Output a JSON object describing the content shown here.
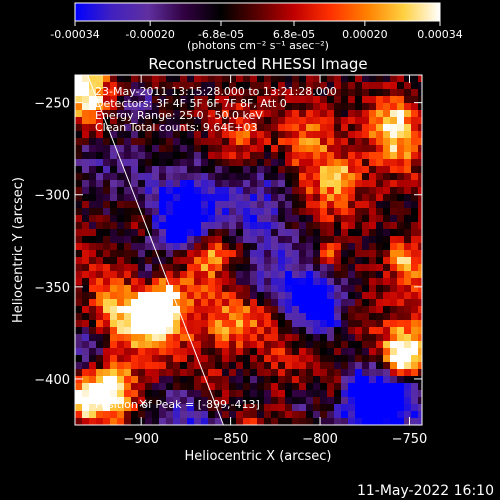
{
  "colorbar": {
    "tick_labels": [
      "-0.00034",
      "-0.00020",
      "-6.8e-05",
      "6.8e-05",
      "0.00020",
      "0.00034"
    ],
    "tick_values": [
      -0.00034,
      -0.0002,
      -6.8e-05,
      6.8e-05,
      0.0002,
      0.00034
    ],
    "range": [
      -0.00034,
      0.00034
    ],
    "units_label": "(photons cm⁻² s⁻¹ asec⁻²)",
    "colors": [
      "#0000ff",
      "#4020c0",
      "#6030a0",
      "#300040",
      "#000000",
      "#5a0000",
      "#c00000",
      "#ff3000",
      "#ff8000",
      "#ffd040",
      "#ffffff"
    ]
  },
  "chart_data": {
    "type": "heatmap",
    "title": "Reconstructed RHESSI Image",
    "xlabel": "Heliocentric X (arcsec)",
    "ylabel": "Heliocentric Y (arcsec)",
    "xlim": [
      -937,
      -743
    ],
    "ylim": [
      -425,
      -235
    ],
    "x_ticks": [
      -900,
      -850,
      -800,
      -750
    ],
    "y_ticks": [
      -250,
      -300,
      -350,
      -400
    ],
    "x_tick_labels": [
      "−900",
      "−850",
      "−800",
      "−750"
    ],
    "y_tick_labels": [
      "−250",
      "−300",
      "−350",
      "−400"
    ],
    "limb_line": [
      [
        -930,
        -235
      ],
      [
        -854,
        -425
      ]
    ],
    "annotations": [
      "23-May-2011 13:15:28.000 to 13:21:28.000",
      "Detectors: 3F 4F 5F 6F 7F 8F, Att 0",
      "Energy Range: 25.0 - 50.0 keV",
      "Clean     Total counts: 9.64E+03"
    ],
    "peak_label": "Position of Peak = [-899,-413]",
    "peak_position": [
      -899,
      -413
    ],
    "peak_marker": "×"
  },
  "footer": {
    "timestamp": "11-May-2022 16:10"
  }
}
